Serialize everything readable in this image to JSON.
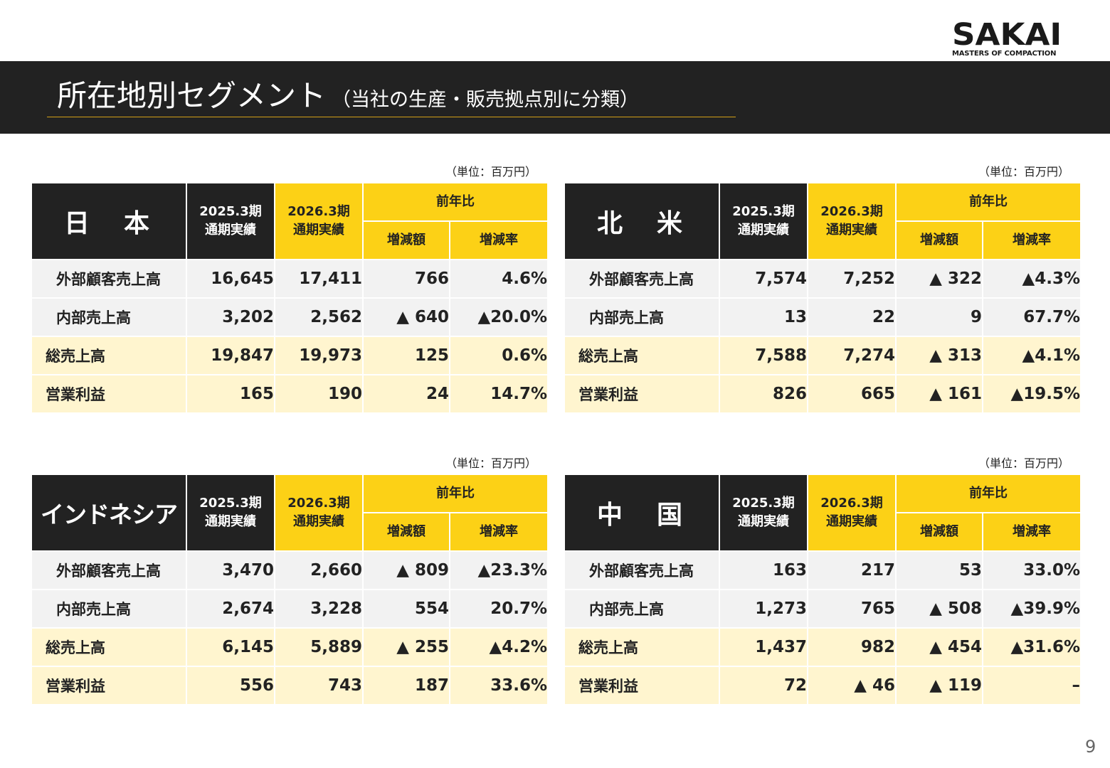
{
  "logo": {
    "name": "SAKAI",
    "tagline": "MASTERS OF COMPACTION"
  },
  "title": {
    "main": "所在地別セグメント",
    "sub": "（当社の生産・販売拠点別に分類）"
  },
  "unit_label": "（単位：百万円）",
  "headers": {
    "prev": [
      "2025.3期",
      "通期実績"
    ],
    "curr": [
      "2026.3期",
      "通期実績"
    ],
    "yoy": "前年比",
    "diff": "増減額",
    "rate": "増減率"
  },
  "tables": [
    {
      "region": "日　本",
      "rows": [
        {
          "label": "外部顧客売上高",
          "prev": "16,645",
          "curr": "17,411",
          "diff": "766",
          "rate": "4.6%"
        },
        {
          "label": "内部売上高",
          "prev": "3,202",
          "curr": "2,562",
          "diff": "▲ 640",
          "rate": "▲20.0%"
        },
        {
          "label": "総売上高",
          "prev": "19,847",
          "curr": "19,973",
          "diff": "125",
          "rate": "0.6%"
        },
        {
          "label": "営業利益",
          "prev": "165",
          "curr": "190",
          "diff": "24",
          "rate": "14.7%"
        }
      ]
    },
    {
      "region": "北　米",
      "rows": [
        {
          "label": "外部顧客売上高",
          "prev": "7,574",
          "curr": "7,252",
          "diff": "▲ 322",
          "rate": "▲4.3%"
        },
        {
          "label": "内部売上高",
          "prev": "13",
          "curr": "22",
          "diff": "9",
          "rate": "67.7%"
        },
        {
          "label": "総売上高",
          "prev": "7,588",
          "curr": "7,274",
          "diff": "▲ 313",
          "rate": "▲4.1%"
        },
        {
          "label": "営業利益",
          "prev": "826",
          "curr": "665",
          "diff": "▲ 161",
          "rate": "▲19.5%"
        }
      ]
    },
    {
      "region": "インドネシア",
      "rows": [
        {
          "label": "外部顧客売上高",
          "prev": "3,470",
          "curr": "2,660",
          "diff": "▲ 809",
          "rate": "▲23.3%"
        },
        {
          "label": "内部売上高",
          "prev": "2,674",
          "curr": "3,228",
          "diff": "554",
          "rate": "20.7%"
        },
        {
          "label": "総売上高",
          "prev": "6,145",
          "curr": "5,889",
          "diff": "▲ 255",
          "rate": "▲4.2%"
        },
        {
          "label": "営業利益",
          "prev": "556",
          "curr": "743",
          "diff": "187",
          "rate": "33.6%"
        }
      ]
    },
    {
      "region": "中　国",
      "rows": [
        {
          "label": "外部顧客売上高",
          "prev": "163",
          "curr": "217",
          "diff": "53",
          "rate": "33.0%"
        },
        {
          "label": "内部売上高",
          "prev": "1,273",
          "curr": "765",
          "diff": "▲ 508",
          "rate": "▲39.9%"
        },
        {
          "label": "総売上高",
          "prev": "1,437",
          "curr": "982",
          "diff": "▲ 454",
          "rate": "▲31.6%"
        },
        {
          "label": "営業利益",
          "prev": "72",
          "curr": "▲ 46",
          "diff": "▲ 119",
          "rate": "–"
        }
      ]
    }
  ],
  "page_number": "9"
}
